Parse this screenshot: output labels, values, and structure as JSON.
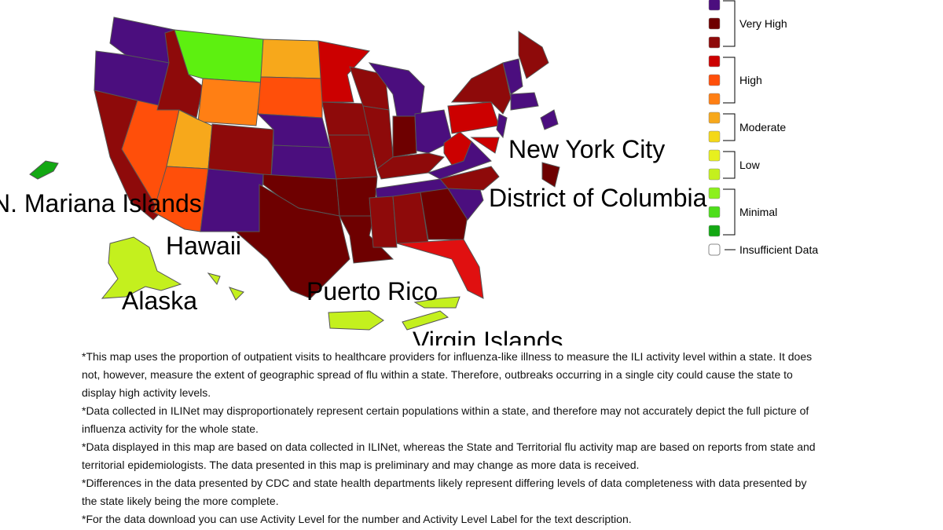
{
  "map_labels": {
    "mariana": "N. Mariana Islands",
    "hawaii": "Hawaii",
    "alaska": "Alaska",
    "puerto_rico": "Puerto Rico",
    "virgin_islands": "Virgin Islands",
    "nyc": "New York City",
    "dc": "District of Columbia"
  },
  "legend": {
    "groups": [
      {
        "label": "Very High",
        "colors": [
          "#4b0e7e",
          "#6e0000",
          "#8e0a0a"
        ]
      },
      {
        "label": "High",
        "colors": [
          "#cc0000",
          "#ff4f0a",
          "#ff7f14"
        ]
      },
      {
        "label": "Moderate",
        "colors": [
          "#f7a81b",
          "#f4d817"
        ]
      },
      {
        "label": "Low",
        "colors": [
          "#e7f01e",
          "#c4f01e"
        ]
      },
      {
        "label": "Minimal",
        "colors": [
          "#8cf01c",
          "#4ede1a",
          "#13a813"
        ]
      }
    ],
    "insufficient": {
      "label": "Insufficient Data",
      "color": "#ffffff"
    }
  },
  "notes": [
    "*This map uses the proportion of outpatient visits to healthcare providers for influenza-like illness to measure the ILI activity level within a state. It does not, however, measure the extent of geographic spread of flu within a state. Therefore, outbreaks occurring in a single city could cause the state to display high activity levels.",
    "*Data collected in ILINet may disproportionately represent certain populations within a state, and therefore may not accurately depict the full picture of influenza activity for the whole state.",
    "*Data displayed in this map are based on data collected in ILINet, whereas the State and Territorial flu activity map are based on reports from state and territorial epidemiologists. The data presented in this map is preliminary and may change as more data is received.",
    "*Differences in the data presented by CDC and state health departments likely represent differing levels of data completeness with data presented by the state likely being the more complete.",
    "*For the data download you can use Activity Level for the number and Activity Level Label for the text description."
  ]
}
